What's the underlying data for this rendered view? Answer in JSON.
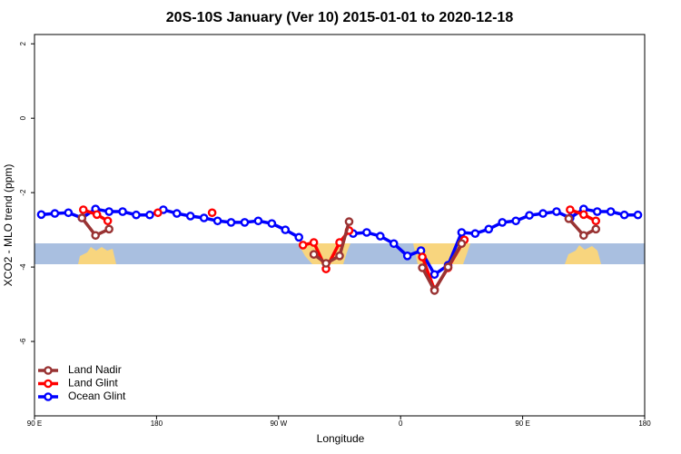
{
  "chart_data": {
    "type": "line",
    "title": "20S-10S January (Ver 10)   2015-01-01 to 2020-12-18",
    "xlabel": "Longitude",
    "ylabel": "XCO2 - MLO trend (ppm)",
    "xlim": [
      90,
      540
    ],
    "ylim": [
      -8,
      2.25
    ],
    "xticks": [
      {
        "value": 90,
        "label": "90 E"
      },
      180,
      {
        "value": 270,
        "label": "90 W"
      },
      {
        "value": 360,
        "label": "0"
      },
      {
        "value": 450,
        "label": "90 E"
      },
      {
        "value": 540,
        "label": "180"
      }
    ],
    "yticks": [
      2,
      0,
      -2,
      -4,
      -6
    ],
    "legend": "bottom-left",
    "series": [
      {
        "name": "Land Nadir",
        "color": "#993333",
        "x": [
          125,
          135,
          145,
          296,
          305,
          315,
          322,
          376,
          385,
          395,
          405,
          484,
          495,
          504
        ],
        "values": [
          -2.68,
          -3.15,
          -2.98,
          -3.66,
          -3.9,
          -3.7,
          -2.78,
          -4.02,
          -4.63,
          -4.0,
          -3.37,
          -2.7,
          -3.15,
          -2.98
        ]
      },
      {
        "name": "Land Glint",
        "color": "#ff0000",
        "x": [
          126,
          136,
          144,
          181,
          221,
          288,
          296,
          305,
          315,
          322,
          376,
          385,
          395,
          407,
          485,
          495,
          504
        ],
        "values": [
          -2.46,
          -2.59,
          -2.76,
          -2.54,
          -2.54,
          -3.41,
          -3.34,
          -4.05,
          -3.34,
          -3.02,
          -3.73,
          -4.61,
          -4.02,
          -3.27,
          -2.46,
          -2.59,
          -2.76
        ]
      },
      {
        "name": "Ocean Glint",
        "color": "#0000ff",
        "x": [
          95,
          105,
          115,
          125,
          135,
          145,
          155,
          165,
          175,
          185,
          195,
          205,
          215,
          225,
          235,
          245,
          255,
          265,
          275,
          285,
          325,
          335,
          345,
          355,
          365,
          375,
          385,
          395,
          405,
          415,
          425,
          435,
          445,
          455,
          465,
          475,
          485,
          495,
          505,
          515,
          525,
          535
        ],
        "values": [
          -2.59,
          -2.56,
          -2.54,
          -2.68,
          -2.44,
          -2.51,
          -2.51,
          -2.6,
          -2.6,
          -2.46,
          -2.56,
          -2.63,
          -2.68,
          -2.76,
          -2.8,
          -2.8,
          -2.76,
          -2.83,
          -3.0,
          -3.2,
          -3.1,
          -3.07,
          -3.17,
          -3.37,
          -3.7,
          -3.56,
          -4.2,
          -3.95,
          -3.07,
          -3.1,
          -2.98,
          -2.8,
          -2.76,
          -2.61,
          -2.56,
          -2.51,
          -2.68,
          -2.44,
          -2.51,
          -2.51,
          -2.6,
          -2.6
        ]
      }
    ]
  }
}
